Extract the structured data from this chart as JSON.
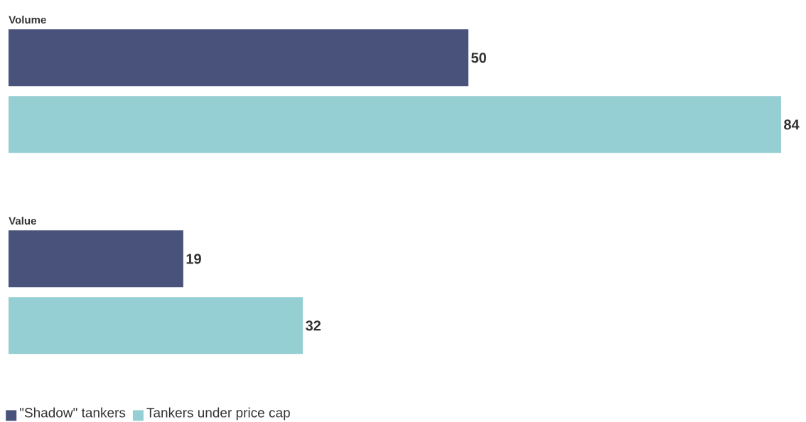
{
  "chart_data": {
    "type": "bar",
    "orientation": "horizontal",
    "data_labels": true,
    "legend": "bottom left",
    "categories": [
      "Volume",
      "Value"
    ],
    "series": [
      {
        "name": "\"Shadow\" tankers",
        "color": "#48527a",
        "values": [
          50,
          19
        ]
      },
      {
        "name": "Tankers under price cap",
        "color": "#96cfd3",
        "values": [
          84,
          32
        ]
      }
    ]
  }
}
